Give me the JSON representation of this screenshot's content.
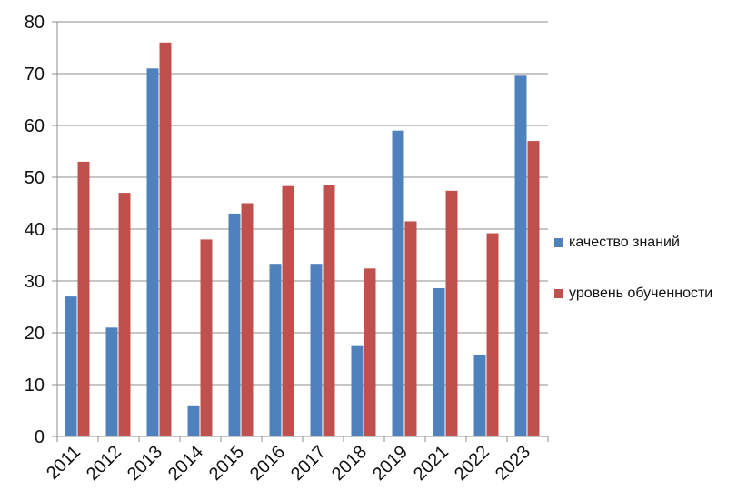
{
  "chart_data": {
    "type": "bar",
    "title": "",
    "xlabel": "",
    "ylabel": "",
    "ylim": [
      0,
      80
    ],
    "yticks": [
      0,
      10,
      20,
      30,
      40,
      50,
      60,
      70,
      80
    ],
    "grid": true,
    "legend_position": "right",
    "categories": [
      "2011",
      "2012",
      "2013",
      "2014",
      "2015",
      "2016",
      "2017",
      "2018",
      "2019",
      "2021",
      "2022",
      "2023"
    ],
    "series": [
      {
        "name": "качество знаний",
        "color": "#4F81BD",
        "values": [
          27,
          21,
          71,
          6,
          43,
          33.3,
          33.3,
          17.6,
          59,
          28.6,
          15.8,
          69.6
        ]
      },
      {
        "name": "уровень обученности",
        "color": "#C0504D",
        "values": [
          53,
          47,
          76,
          38,
          45,
          48.3,
          48.5,
          32.4,
          41.5,
          47.4,
          39.2,
          57
        ]
      }
    ]
  }
}
